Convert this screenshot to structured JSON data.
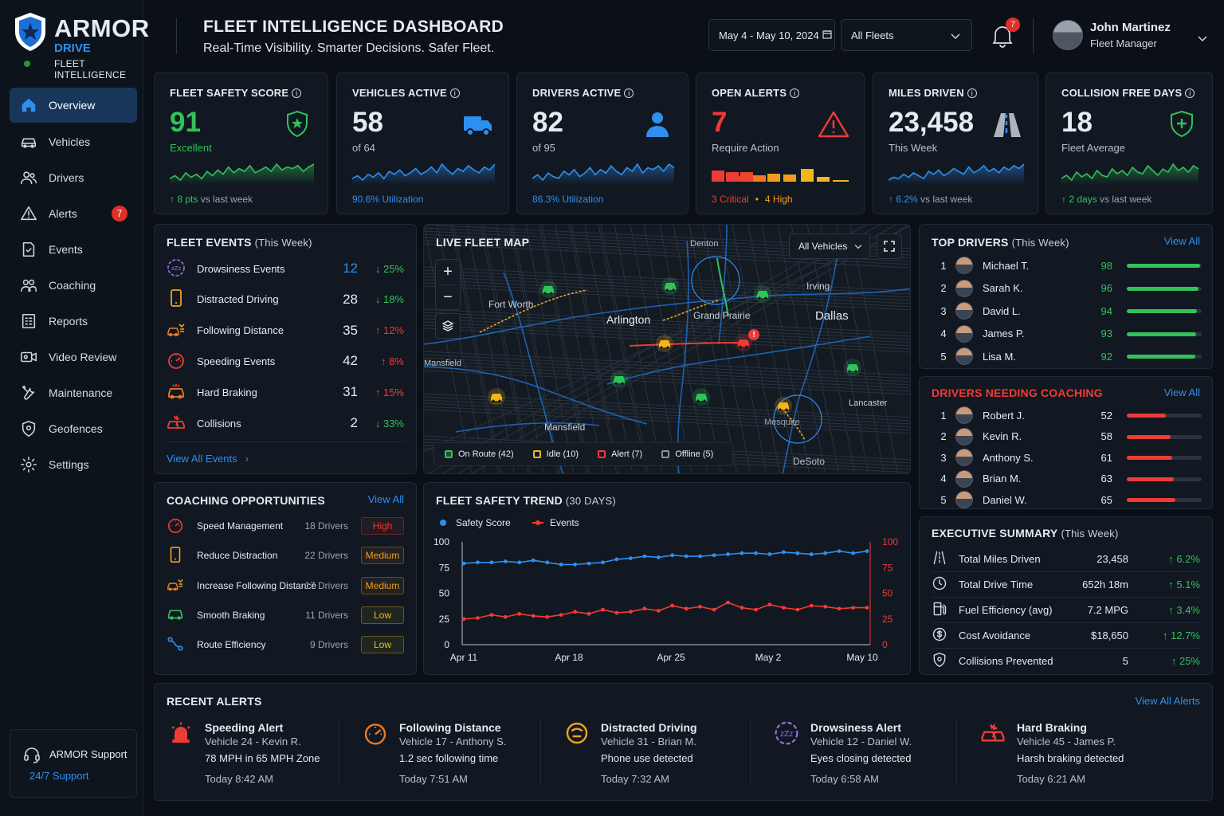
{
  "brand": {
    "name": "ARMOR",
    "sub": "DRIVE",
    "tag": "FLEET INTELLIGENCE"
  },
  "header": {
    "title": "FLEET INTELLIGENCE DASHBOARD",
    "subtitle": "Real-Time Visibility. Smarter Decisions. Safer Fleet.",
    "date_range": "May 4 - May 10, 2024",
    "fleet_select": "All Fleets",
    "notif_count": "7",
    "user_name": "John Martinez",
    "user_role": "Fleet Manager"
  },
  "sidebar": {
    "items": [
      {
        "label": "Overview",
        "icon": "home-icon"
      },
      {
        "label": "Vehicles",
        "icon": "car-icon"
      },
      {
        "label": "Drivers",
        "icon": "users-icon"
      },
      {
        "label": "Alerts",
        "icon": "warning-icon",
        "count": "7"
      },
      {
        "label": "Events",
        "icon": "events-icon"
      },
      {
        "label": "Coaching",
        "icon": "coaching-icon"
      },
      {
        "label": "Reports",
        "icon": "reports-icon"
      },
      {
        "label": "Video Review",
        "icon": "video-icon"
      },
      {
        "label": "Maintenance",
        "icon": "wrench-icon"
      },
      {
        "label": "Geofences",
        "icon": "shield-icon"
      },
      {
        "label": "Settings",
        "icon": "gear-icon"
      }
    ],
    "support_title": "ARMOR Support",
    "support_sub": "24/7 Support"
  },
  "kpis": [
    {
      "label": "FLEET SAFETY SCORE",
      "value": "91",
      "sub": "Excellent",
      "foot_a": "↑ 8 pts",
      "foot_b": " vs last week",
      "color": "#31c25a",
      "spark": [
        14,
        16,
        13,
        18,
        15,
        17,
        14,
        19,
        16,
        20,
        17,
        22,
        18,
        21,
        19,
        23,
        18,
        20,
        22,
        19,
        24,
        20,
        22,
        21,
        23,
        19,
        22,
        24
      ]
    },
    {
      "label": "VEHICLES ACTIVE",
      "value": "58",
      "sub": "of 64",
      "foot_a": "90.6% Utilization",
      "foot_b": "",
      "color": "#2e8ff0",
      "spark": [
        12,
        14,
        11,
        15,
        13,
        16,
        12,
        17,
        15,
        18,
        14,
        16,
        19,
        15,
        17,
        20,
        16,
        22,
        18,
        15,
        19,
        17,
        21,
        18,
        16,
        20,
        18,
        22
      ]
    },
    {
      "label": "DRIVERS ACTIVE",
      "value": "82",
      "sub": "of 95",
      "foot_a": "86.3% Utilization",
      "foot_b": "",
      "color": "#2e8ff0",
      "spark": [
        13,
        15,
        12,
        16,
        14,
        13,
        17,
        15,
        18,
        14,
        16,
        19,
        15,
        18,
        16,
        20,
        17,
        15,
        19,
        17,
        21,
        16,
        19,
        18,
        20,
        17,
        21,
        19
      ]
    },
    {
      "label": "OPEN ALERTS",
      "value": "7",
      "sub": "Require Action",
      "foot_a": "3 Critical",
      "foot_b": "4 High",
      "color": "#ef3b36",
      "spark": []
    },
    {
      "label": "MILES DRIVEN",
      "value": "23,458",
      "sub": "This Week",
      "foot_a": "↑ 6.2%",
      "foot_b": " vs last week",
      "color": "#2e8ff0",
      "spark": [
        12,
        14,
        13,
        16,
        14,
        17,
        15,
        13,
        18,
        16,
        19,
        15,
        17,
        20,
        18,
        16,
        21,
        17,
        19,
        22,
        18,
        20,
        17,
        21,
        19,
        22,
        20,
        23
      ]
    },
    {
      "label": "COLLISION FREE DAYS",
      "value": "18",
      "sub": "Fleet Average",
      "foot_a": "↑ 2 days",
      "foot_b": " vs last week",
      "color": "#31c25a",
      "spark": [
        13,
        15,
        12,
        17,
        14,
        16,
        13,
        18,
        15,
        14,
        19,
        16,
        18,
        15,
        20,
        17,
        16,
        21,
        18,
        15,
        19,
        17,
        22,
        18,
        20,
        17,
        21,
        19
      ]
    }
  ],
  "fleet_events": {
    "title": "FLEET EVENTS",
    "period": "(This Week)",
    "view_all": "View All Events",
    "rows": [
      {
        "label": "Drowsiness Events",
        "value": "12",
        "change": "↓ 25%",
        "dir": "down",
        "icon": "drowsy-icon"
      },
      {
        "label": "Distracted Driving",
        "value": "28",
        "change": "↓ 18%",
        "dir": "down",
        "icon": "phone-icon"
      },
      {
        "label": "Following Distance",
        "value": "35",
        "change": "↑ 12%",
        "dir": "up",
        "icon": "following-icon"
      },
      {
        "label": "Speeding Events",
        "value": "42",
        "change": "↑ 8%",
        "dir": "up",
        "icon": "speedometer-icon"
      },
      {
        "label": "Hard Braking",
        "value": "31",
        "change": "↑ 15%",
        "dir": "up",
        "icon": "braking-icon"
      },
      {
        "label": "Collisions",
        "value": "2",
        "change": "↓ 33%",
        "dir": "down",
        "icon": "collision-icon"
      }
    ]
  },
  "map": {
    "title": "LIVE FLEET MAP",
    "filter": "All Vehicles",
    "cities": [
      {
        "name": "Fort Worth"
      },
      {
        "name": "Arlington"
      },
      {
        "name": "Grand Prairie"
      },
      {
        "name": "Dallas"
      },
      {
        "name": "Irving"
      },
      {
        "name": "Denton"
      },
      {
        "name": "Mansfield"
      },
      {
        "name": "Mansfield"
      },
      {
        "name": "Lancaster"
      },
      {
        "name": "DeSoto"
      },
      {
        "name": "Mesquite"
      }
    ],
    "legend": [
      {
        "label": "On Route (42)",
        "color": "#31c25a"
      },
      {
        "label": "Idle (10)",
        "color": "#f3b41d"
      },
      {
        "label": "Alert (7)",
        "color": "#ef3b36"
      },
      {
        "label": "Offline (5)",
        "color": "#8a939e"
      }
    ]
  },
  "top_drivers": {
    "title": "TOP DRIVERS",
    "period": "(This Week)",
    "view_all": "View All",
    "rows": [
      {
        "rank": "1",
        "name": "Michael T.",
        "score": "98"
      },
      {
        "rank": "2",
        "name": "Sarah K.",
        "score": "96"
      },
      {
        "rank": "3",
        "name": "David L.",
        "score": "94"
      },
      {
        "rank": "4",
        "name": "James P.",
        "score": "93"
      },
      {
        "rank": "5",
        "name": "Lisa M.",
        "score": "92"
      }
    ]
  },
  "coaching_needed": {
    "title": "DRIVERS NEEDING COACHING",
    "view_all": "View All",
    "rows": [
      {
        "rank": "1",
        "name": "Robert J.",
        "score": "52"
      },
      {
        "rank": "2",
        "name": "Kevin R.",
        "score": "58"
      },
      {
        "rank": "3",
        "name": "Anthony S.",
        "score": "61"
      },
      {
        "rank": "4",
        "name": "Brian M.",
        "score": "63"
      },
      {
        "rank": "5",
        "name": "Daniel W.",
        "score": "65"
      }
    ]
  },
  "coaching_opps": {
    "title": "COACHING OPPORTUNITIES",
    "view_all": "View All",
    "rows": [
      {
        "label": "Speed Management",
        "drivers": "18 Drivers",
        "level": "High",
        "icon": "speedometer-icon"
      },
      {
        "label": "Reduce Distraction",
        "drivers": "22 Drivers",
        "level": "Medium",
        "icon": "phone-icon"
      },
      {
        "label": "Increase Following Distance",
        "drivers": "17 Drivers",
        "level": "Medium",
        "icon": "following-icon"
      },
      {
        "label": "Smooth Braking",
        "drivers": "11 Drivers",
        "level": "Low",
        "icon": "car-icon"
      },
      {
        "label": "Route Efficiency",
        "drivers": "9 Drivers",
        "level": "Low",
        "icon": "route-icon"
      }
    ]
  },
  "chart_data": {
    "type": "line",
    "title": "FLEET SAFETY TREND",
    "subtitle": "(30 DAYS)",
    "x_ticks": [
      "Apr 11",
      "Apr 18",
      "Apr 25",
      "May 2",
      "May 10"
    ],
    "ylim": [
      0,
      100
    ],
    "y_ticks": [
      0,
      25,
      50,
      75,
      100
    ],
    "y2lim": [
      0,
      100
    ],
    "y2_ticks": [
      0,
      25,
      50,
      75,
      100
    ],
    "series": [
      {
        "name": "Safety Score",
        "axis": "left",
        "color": "#2e8ff0",
        "values": [
          79,
          80,
          80,
          81,
          80,
          82,
          80,
          78,
          78,
          79,
          80,
          83,
          84,
          86,
          85,
          87,
          86,
          86,
          87,
          88,
          89,
          89,
          88,
          90,
          89,
          88,
          89,
          91,
          89,
          91
        ]
      },
      {
        "name": "Events",
        "axis": "right",
        "color": "#ef3b36",
        "values": [
          25,
          26,
          29,
          27,
          30,
          28,
          27,
          29,
          32,
          30,
          34,
          31,
          32,
          35,
          33,
          38,
          35,
          37,
          34,
          41,
          36,
          34,
          39,
          36,
          34,
          38,
          37,
          35,
          36,
          36
        ]
      }
    ]
  },
  "exec_summary": {
    "title": "EXECUTIVE SUMMARY",
    "period": "(This Week)",
    "rows": [
      {
        "label": "Total Miles Driven",
        "value": "23,458",
        "change": "↑ 6.2%",
        "icon": "road-icon"
      },
      {
        "label": "Total Drive Time",
        "value": "652h 18m",
        "change": "↑ 5.1%",
        "icon": "clock-icon"
      },
      {
        "label": "Fuel Efficiency (avg)",
        "value": "7.2 MPG",
        "change": "↑ 3.4%",
        "icon": "fuel-icon"
      },
      {
        "label": "Cost Avoidance",
        "value": "$18,650",
        "change": "↑ 12.7%",
        "icon": "dollar-icon"
      },
      {
        "label": "Collisions Prevented",
        "value": "5",
        "change": "↑ 25%",
        "icon": "shield-icon"
      }
    ]
  },
  "recent_alerts": {
    "title": "RECENT ALERTS",
    "view_all": "View All Alerts",
    "items": [
      {
        "title": "Speeding Alert",
        "vehicle": "Vehicle 24 - Kevin R.",
        "detail": "78 MPH in 65 MPH Zone",
        "time": "Today 8:42 AM",
        "color": "#ef3b36",
        "icon": "siren-icon"
      },
      {
        "title": "Following Distance",
        "vehicle": "Vehicle 17 - Anthony S.",
        "detail": "1.2 sec following time",
        "time": "Today 7:51 AM",
        "color": "#f07a1d",
        "icon": "speedometer-icon"
      },
      {
        "title": "Distracted Driving",
        "vehicle": "Vehicle 31 - Brian M.",
        "detail": "Phone use detected",
        "time": "Today 7:32 AM",
        "color": "#f3a11d",
        "icon": "distracted-icon"
      },
      {
        "title": "Drowsiness Alert",
        "vehicle": "Vehicle 12 - Daniel W.",
        "detail": "Eyes closing detected",
        "time": "Today 6:58 AM",
        "color": "#9b6cf0",
        "icon": "drowsy-icon"
      },
      {
        "title": "Hard Braking",
        "vehicle": "Vehicle 45 - James P.",
        "detail": "Harsh braking detected",
        "time": "Today 6:21 AM",
        "color": "#ef3b36",
        "icon": "collision-icon"
      }
    ]
  }
}
